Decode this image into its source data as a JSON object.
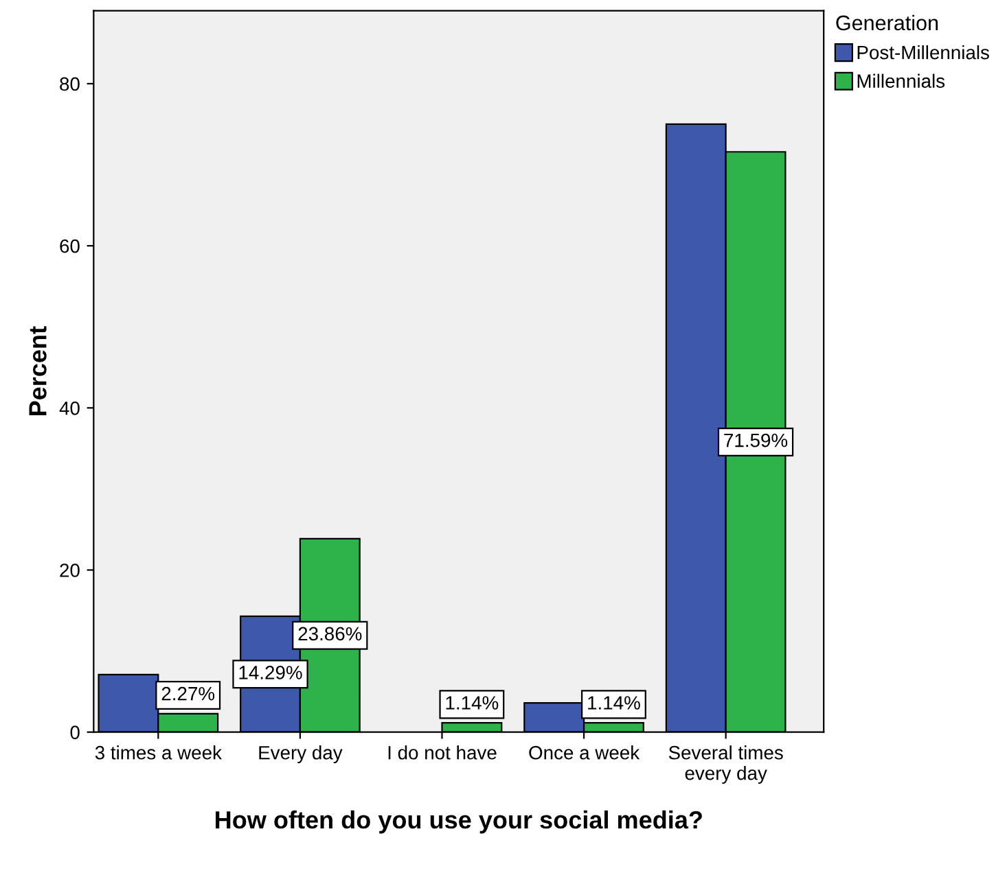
{
  "chart_data": {
    "type": "bar",
    "xlabel": "How often do you use your social media?",
    "ylabel": "Percent",
    "legend_title": "Generation",
    "legend": "top right",
    "grid": false,
    "categories": [
      "3 times a week",
      "Every day",
      "I do not have",
      "Once a week",
      "Several times every day"
    ],
    "series": [
      {
        "name": "Post-Millennials",
        "color": "#3e58ac",
        "values": [
          7.1,
          14.29,
          null,
          3.6,
          75.0
        ],
        "value_labels": [
          null,
          "14.29%",
          null,
          null,
          null
        ]
      },
      {
        "name": "Millennials",
        "color": "#2db34a",
        "values": [
          2.27,
          23.86,
          1.14,
          1.14,
          71.59
        ],
        "value_labels": [
          "2.27%",
          "23.86%",
          "1.14%",
          "1.14%",
          "71.59%"
        ]
      }
    ],
    "ylim": [
      0,
      89
    ],
    "yticks": [
      0,
      20,
      40,
      60,
      80
    ]
  }
}
